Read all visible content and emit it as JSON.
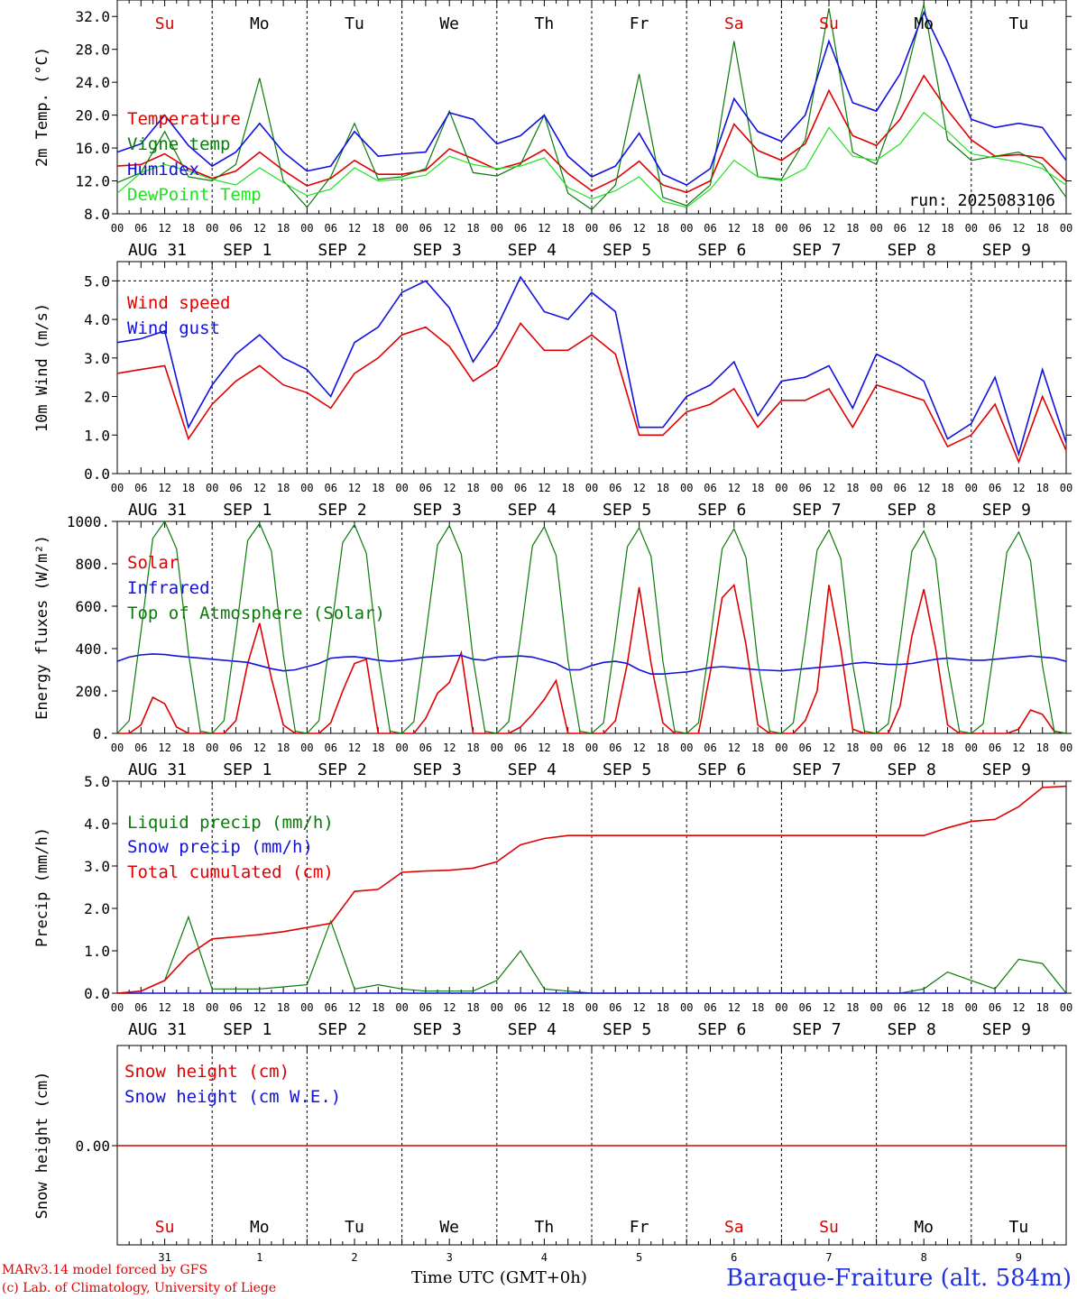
{
  "meta": {
    "run_label": "run: 2025083106",
    "model_credit": "MARv3.14 model forced by GFS",
    "lab_credit": "(c) Lab. of Climatology, University of Liege",
    "x_axis_title": "Time UTC (GMT+0h)",
    "station": "Baraque-Fraiture (alt. 584m)"
  },
  "days": {
    "weekday_labels": [
      "Su",
      "Mo",
      "Tu",
      "We",
      "Th",
      "Fr",
      "Sa",
      "Su",
      "Mo",
      "Tu"
    ],
    "weekend_flags": [
      true,
      false,
      false,
      false,
      false,
      false,
      true,
      true,
      false,
      false
    ],
    "date_labels": [
      "AUG 31",
      "SEP  1",
      "SEP  2",
      "SEP  3",
      "SEP  4",
      "SEP  5",
      "SEP  6",
      "SEP  7",
      "SEP  8",
      "SEP  9"
    ],
    "day_numbers": [
      "31",
      "1",
      "2",
      "3",
      "4",
      "5",
      "6",
      "7",
      "8",
      "9"
    ],
    "hour_ticks": [
      "00",
      "06",
      "12",
      "18"
    ],
    "final_tick": "00",
    "overlap_text": "SEP"
  },
  "colors": {
    "red": "#e00000",
    "blue": "#1010e0",
    "green": "#0a7a0a",
    "lightgreen": "#22e022",
    "weekend": "#e00000"
  },
  "chart_data": [
    {
      "type": "line",
      "ylabel": "2m Temp. (°C)",
      "ylim": [
        8,
        34
      ],
      "yticks": [
        "8.0",
        "12.0",
        "16.0",
        "20.0",
        "24.0",
        "28.0",
        "32.0"
      ],
      "x_hours": [
        0,
        6,
        12,
        18,
        24,
        30,
        36,
        42,
        48,
        54,
        60,
        66,
        72,
        78,
        84,
        90,
        96,
        102,
        108,
        114,
        120,
        126,
        132,
        138,
        144,
        150,
        156,
        162,
        168,
        174,
        180,
        186,
        192,
        198,
        204,
        210,
        216,
        222,
        228,
        234,
        240
      ],
      "series": [
        {
          "name": "Temperature",
          "color": "red",
          "values": [
            13.8,
            14.0,
            15.3,
            13.5,
            12.3,
            13.2,
            15.5,
            13.3,
            11.4,
            12.3,
            14.5,
            12.8,
            12.8,
            13.3,
            15.9,
            14.7,
            13.4,
            14.2,
            15.8,
            12.9,
            10.8,
            12.2,
            14.4,
            11.5,
            10.6,
            12.0,
            18.9,
            15.7,
            14.5,
            16.5,
            23.0,
            17.5,
            16.3,
            19.5,
            24.8,
            20.6,
            17.0,
            15.0,
            15.2,
            14.8,
            12.0
          ]
        },
        {
          "name": "Vigne temp",
          "color": "green",
          "values": [
            11.8,
            13.0,
            18.0,
            12.5,
            12.0,
            14.0,
            24.5,
            12.0,
            8.8,
            12.5,
            19.0,
            12.2,
            12.5,
            13.5,
            20.5,
            13.0,
            12.6,
            14.0,
            20.0,
            10.5,
            8.5,
            11.5,
            25.0,
            10.0,
            9.0,
            11.5,
            29.0,
            12.5,
            12.2,
            17.0,
            33.0,
            15.5,
            14.0,
            22.0,
            33.5,
            17.0,
            14.5,
            15.0,
            15.5,
            14.0,
            10.0
          ]
        },
        {
          "name": "Humidex",
          "color": "blue",
          "values": [
            15.5,
            16.5,
            20.0,
            16.3,
            13.8,
            15.5,
            19.0,
            15.5,
            13.2,
            13.8,
            18.0,
            15.0,
            15.3,
            15.5,
            20.3,
            19.5,
            16.5,
            17.5,
            20.0,
            15.0,
            12.5,
            13.8,
            17.8,
            12.8,
            11.5,
            13.5,
            22.0,
            18.0,
            16.8,
            20.0,
            29.0,
            21.5,
            20.5,
            25.0,
            32.5,
            26.5,
            19.5,
            18.5,
            19.0,
            18.5,
            14.5
          ]
        },
        {
          "name": "DewPoint Temp",
          "color": "lightgreen",
          "values": [
            10.5,
            13.0,
            14.0,
            13.2,
            12.2,
            11.5,
            13.6,
            11.8,
            10.2,
            11.0,
            13.6,
            12.0,
            12.2,
            12.7,
            15.0,
            14.0,
            13.5,
            13.8,
            14.8,
            11.2,
            9.8,
            10.8,
            12.5,
            9.5,
            8.8,
            11.0,
            14.5,
            12.5,
            12.0,
            13.5,
            18.5,
            15.0,
            14.5,
            16.5,
            20.3,
            18.0,
            15.3,
            14.8,
            14.3,
            13.5,
            11.5
          ]
        }
      ]
    },
    {
      "type": "line",
      "ylabel": "10m Wind (m/s)",
      "ylim": [
        0,
        5.5
      ],
      "yticks": [
        "0.0",
        "1.0",
        "2.0",
        "3.0",
        "4.0",
        "5.0"
      ],
      "x_hours": [
        0,
        6,
        12,
        18,
        24,
        30,
        36,
        42,
        48,
        54,
        60,
        66,
        72,
        78,
        84,
        90,
        96,
        102,
        108,
        114,
        120,
        126,
        132,
        138,
        144,
        150,
        156,
        162,
        168,
        174,
        180,
        186,
        192,
        198,
        204,
        210,
        216,
        222,
        228,
        234,
        240
      ],
      "series": [
        {
          "name": "Wind speed",
          "color": "red",
          "values": [
            2.6,
            2.7,
            2.8,
            0.9,
            1.8,
            2.4,
            2.8,
            2.3,
            2.1,
            1.7,
            2.6,
            3.0,
            3.6,
            3.8,
            3.3,
            2.4,
            2.8,
            3.9,
            3.2,
            3.2,
            3.6,
            3.1,
            1.0,
            1.0,
            1.6,
            1.8,
            2.2,
            1.2,
            1.9,
            1.9,
            2.2,
            1.2,
            2.3,
            2.1,
            1.9,
            0.7,
            1.0,
            1.8,
            0.3,
            2.0,
            0.6
          ]
        },
        {
          "name": "Wind gust",
          "color": "blue",
          "values": [
            3.4,
            3.5,
            3.7,
            1.2,
            2.3,
            3.1,
            3.6,
            3.0,
            2.7,
            2.0,
            3.4,
            3.8,
            4.7,
            5.0,
            4.3,
            2.9,
            3.8,
            5.1,
            4.2,
            4.0,
            4.7,
            4.2,
            1.2,
            1.2,
            2.0,
            2.3,
            2.9,
            1.5,
            2.4,
            2.5,
            2.8,
            1.7,
            3.1,
            2.8,
            2.4,
            0.9,
            1.3,
            2.5,
            0.5,
            2.7,
            0.8
          ]
        }
      ]
    },
    {
      "type": "line",
      "ylabel": "Energy fluxes (W/m²)",
      "ylim": [
        0,
        1000
      ],
      "yticks": [
        "0.",
        "200.",
        "400.",
        "600.",
        "800.",
        "1000."
      ],
      "x_hours": [
        0,
        3,
        6,
        9,
        12,
        15,
        18,
        21,
        24,
        27,
        30,
        33,
        36,
        39,
        42,
        45,
        48,
        51,
        54,
        57,
        60,
        63,
        66,
        69,
        72,
        75,
        78,
        81,
        84,
        87,
        90,
        93,
        96,
        99,
        102,
        105,
        108,
        111,
        114,
        117,
        120,
        123,
        126,
        129,
        132,
        135,
        138,
        141,
        144,
        147,
        150,
        153,
        156,
        159,
        162,
        165,
        168,
        171,
        174,
        177,
        180,
        183,
        186,
        189,
        192,
        195,
        198,
        201,
        204,
        207,
        210,
        213,
        216,
        219,
        222,
        225,
        228,
        231,
        234,
        237,
        240
      ],
      "series": [
        {
          "name": "Solar",
          "color": "red",
          "values": [
            0,
            0,
            40,
            170,
            140,
            30,
            0,
            0,
            0,
            0,
            60,
            330,
            520,
            260,
            40,
            0,
            0,
            0,
            50,
            200,
            330,
            350,
            0,
            0,
            0,
            0,
            70,
            190,
            240,
            380,
            0,
            0,
            0,
            0,
            30,
            90,
            160,
            250,
            0,
            0,
            0,
            0,
            60,
            330,
            690,
            330,
            50,
            0,
            0,
            0,
            290,
            640,
            700,
            420,
            40,
            0,
            0,
            0,
            60,
            200,
            700,
            400,
            20,
            0,
            0,
            0,
            130,
            460,
            680,
            400,
            40,
            0,
            0,
            0,
            0,
            0,
            20,
            110,
            90,
            10,
            0
          ]
        },
        {
          "name": "Infrared",
          "color": "blue",
          "values": [
            340,
            360,
            370,
            375,
            372,
            365,
            360,
            355,
            350,
            345,
            340,
            335,
            320,
            305,
            295,
            300,
            315,
            330,
            355,
            360,
            362,
            355,
            345,
            340,
            345,
            352,
            360,
            362,
            365,
            368,
            350,
            345,
            360,
            362,
            365,
            360,
            345,
            330,
            300,
            300,
            320,
            335,
            340,
            330,
            300,
            280,
            280,
            285,
            290,
            300,
            310,
            315,
            310,
            305,
            300,
            298,
            295,
            300,
            305,
            310,
            315,
            320,
            330,
            335,
            330,
            325,
            325,
            330,
            340,
            350,
            355,
            350,
            345,
            345,
            350,
            355,
            360,
            365,
            360,
            355,
            340
          ]
        },
        {
          "name": "Top of Atmosphere (Solar)",
          "color": "green",
          "values": [
            0,
            60,
            480,
            920,
            1000,
            870,
            380,
            10,
            0,
            60,
            470,
            910,
            990,
            860,
            370,
            10,
            0,
            60,
            470,
            900,
            985,
            850,
            360,
            10,
            0,
            55,
            460,
            890,
            980,
            845,
            350,
            10,
            0,
            55,
            455,
            885,
            975,
            840,
            345,
            10,
            0,
            50,
            450,
            880,
            970,
            835,
            340,
            10,
            0,
            50,
            445,
            870,
            965,
            830,
            335,
            10,
            0,
            50,
            440,
            865,
            960,
            825,
            330,
            10,
            0,
            45,
            435,
            860,
            955,
            820,
            325,
            10,
            0,
            45,
            430,
            855,
            950,
            815,
            320,
            10,
            0
          ]
        }
      ]
    },
    {
      "type": "line",
      "ylabel": "Precip (mm/h)",
      "ylim": [
        0,
        5
      ],
      "yticks": [
        "0.0",
        "1.0",
        "2.0",
        "3.0",
        "4.0",
        "5.0"
      ],
      "x_hours": [
        0,
        6,
        12,
        18,
        24,
        30,
        36,
        42,
        48,
        54,
        60,
        66,
        72,
        78,
        84,
        90,
        96,
        102,
        108,
        114,
        120,
        126,
        132,
        138,
        144,
        150,
        156,
        162,
        168,
        174,
        180,
        186,
        192,
        198,
        204,
        210,
        216,
        222,
        228,
        234,
        240
      ],
      "series": [
        {
          "name": "Liquid precip (mm/h)",
          "color": "green",
          "values": [
            0,
            0.05,
            0.3,
            1.8,
            0.1,
            0.1,
            0.1,
            0.15,
            0.2,
            1.7,
            0.1,
            0.2,
            0.1,
            0.05,
            0.05,
            0.05,
            0.3,
            1.0,
            0.1,
            0.05,
            0,
            0,
            0,
            0,
            0,
            0,
            0,
            0,
            0,
            0,
            0,
            0,
            0,
            0,
            0.1,
            0.5,
            0.3,
            0.1,
            0.8,
            0.7,
            0
          ]
        },
        {
          "name": "Snow precip (mm/h)",
          "color": "blue",
          "values": [
            0,
            0,
            0,
            0,
            0,
            0,
            0,
            0,
            0,
            0,
            0,
            0,
            0,
            0,
            0,
            0,
            0,
            0,
            0,
            0,
            0,
            0,
            0,
            0,
            0,
            0,
            0,
            0,
            0,
            0,
            0,
            0,
            0,
            0,
            0,
            0,
            0,
            0,
            0,
            0,
            0
          ]
        },
        {
          "name": "Total cumulated (cm)",
          "color": "red",
          "values": [
            0,
            0.05,
            0.3,
            0.9,
            1.28,
            1.33,
            1.38,
            1.45,
            1.55,
            1.65,
            2.4,
            2.45,
            2.85,
            2.88,
            2.9,
            2.95,
            3.1,
            3.5,
            3.65,
            3.72,
            3.72,
            3.72,
            3.72,
            3.72,
            3.72,
            3.72,
            3.72,
            3.72,
            3.72,
            3.72,
            3.72,
            3.72,
            3.72,
            3.72,
            3.72,
            3.9,
            4.05,
            4.1,
            4.4,
            4.85,
            4.88
          ]
        }
      ]
    },
    {
      "type": "line",
      "ylabel": "Snow height (cm)",
      "yticks": [
        "0.00"
      ],
      "x_hours": [
        0,
        240
      ],
      "series": [
        {
          "name": "Snow height (cm)",
          "color": "red",
          "values": [
            0,
            0
          ]
        },
        {
          "name": "Snow height (cm W.E.)",
          "color": "blue",
          "values": [
            0,
            0
          ]
        }
      ]
    }
  ]
}
